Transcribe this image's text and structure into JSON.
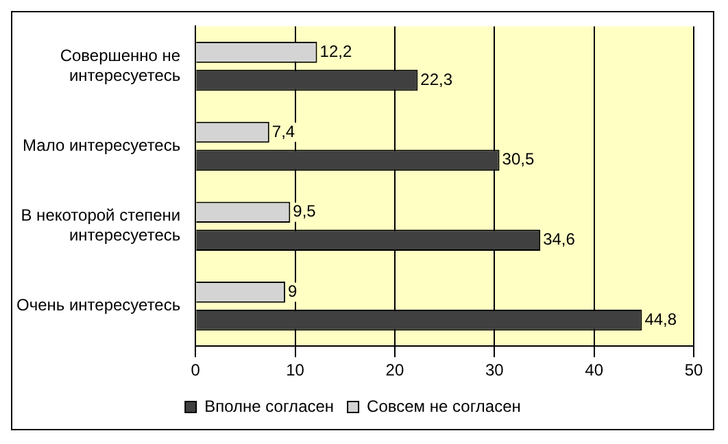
{
  "chart_data": {
    "type": "bar",
    "orientation": "horizontal",
    "categories": [
      "Совершенно не интересуетесь",
      "Мало интересуетесь",
      "В некоторой степени интересуетесь",
      "Очень интересуетесь"
    ],
    "series": [
      {
        "name": "Вполне согласен",
        "color": "#404040",
        "values": [
          22.3,
          30.5,
          34.6,
          44.8
        ],
        "value_labels": [
          "22,3",
          "30,5",
          "34,6",
          "44,8"
        ]
      },
      {
        "name": "Совсем не согласен",
        "color": "#d4d4d4",
        "values": [
          12.2,
          7.4,
          9.5,
          9
        ],
        "value_labels": [
          "12,2",
          "7,4",
          "9,5",
          "9"
        ]
      }
    ],
    "xlim": [
      0,
      50
    ],
    "xticks": [
      0,
      10,
      20,
      30,
      40,
      50
    ],
    "grid": "x",
    "legend": "bottom"
  }
}
